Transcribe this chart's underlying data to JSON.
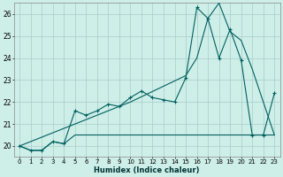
{
  "xlabel": "Humidex (Indice chaleur)",
  "background_color": "#ceeee8",
  "grid_color": "#aaccc8",
  "line_color": "#006060",
  "xlim": [
    -0.5,
    23.5
  ],
  "ylim": [
    19.5,
    26.5
  ],
  "yticks": [
    20,
    21,
    22,
    23,
    24,
    25,
    26
  ],
  "xticks": [
    0,
    1,
    2,
    3,
    4,
    5,
    6,
    7,
    8,
    9,
    10,
    11,
    12,
    13,
    14,
    15,
    16,
    17,
    18,
    19,
    20,
    21,
    22,
    23
  ],
  "series_main": {
    "x": [
      0,
      1,
      2,
      3,
      4,
      5,
      6,
      7,
      8,
      9,
      10,
      11,
      12,
      13,
      14,
      15,
      16,
      17,
      18,
      19,
      20,
      21,
      22,
      23
    ],
    "y": [
      20.0,
      19.8,
      19.8,
      20.2,
      20.1,
      21.6,
      21.4,
      21.6,
      21.9,
      21.8,
      22.2,
      22.5,
      22.2,
      22.1,
      22.0,
      23.1,
      26.3,
      25.8,
      24.0,
      25.3,
      23.9,
      20.5,
      20.5,
      22.4
    ]
  },
  "series_smooth": {
    "x": [
      0,
      5,
      10,
      15,
      16,
      17,
      18,
      19,
      20,
      21,
      22,
      23
    ],
    "y": [
      20.0,
      21.0,
      22.0,
      23.2,
      24.0,
      25.8,
      26.5,
      25.2,
      24.8,
      23.5,
      22.0,
      20.5
    ]
  },
  "series_flat": {
    "x": [
      0,
      1,
      2,
      3,
      4,
      5,
      10,
      15,
      19,
      20,
      21,
      22,
      23
    ],
    "y": [
      20.0,
      19.8,
      19.8,
      20.2,
      20.1,
      20.5,
      20.5,
      20.5,
      20.5,
      20.5,
      20.5,
      20.5,
      20.5
    ]
  }
}
